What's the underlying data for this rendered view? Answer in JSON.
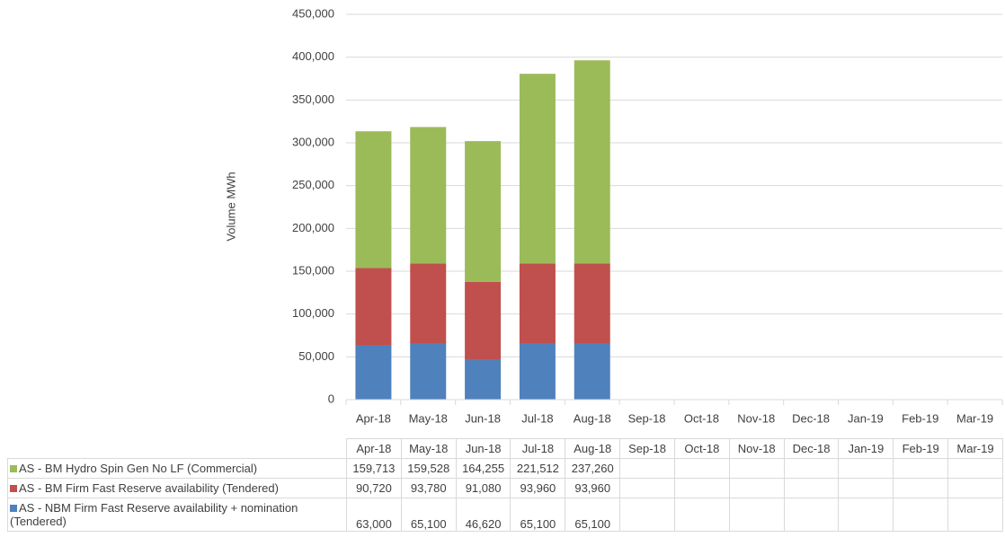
{
  "chart_data": {
    "type": "stacked_bar",
    "y_axis_label": "Volume MWh",
    "categories": [
      "Apr-18",
      "May-18",
      "Jun-18",
      "Jul-18",
      "Aug-18",
      "Sep-18",
      "Oct-18",
      "Nov-18",
      "Dec-18",
      "Jan-19",
      "Feb-19",
      "Mar-19"
    ],
    "series": [
      {
        "name": "AS - NBM Firm Fast Reserve availability + nomination (Tendered)",
        "color": "#4f81bd",
        "values": [
          63000,
          65100,
          46620,
          65100,
          65100,
          null,
          null,
          null,
          null,
          null,
          null,
          null
        ],
        "value_labels": [
          "63,000",
          "65,100",
          "46,620",
          "65,100",
          "65,100",
          null,
          null,
          null,
          null,
          null,
          null,
          null
        ]
      },
      {
        "name": "AS - BM Firm Fast Reserve availability (Tendered)",
        "color": "#c0504d",
        "values": [
          90720,
          93780,
          91080,
          93960,
          93960,
          null,
          null,
          null,
          null,
          null,
          null,
          null
        ],
        "value_labels": [
          "90,720",
          "93,780",
          "91,080",
          "93,960",
          "93,960",
          null,
          null,
          null,
          null,
          null,
          null,
          null
        ]
      },
      {
        "name": "AS - BM Hydro Spin Gen No LF (Commercial)",
        "color": "#9bbb59",
        "values": [
          159713,
          159528,
          164255,
          221512,
          237260,
          null,
          null,
          null,
          null,
          null,
          null,
          null
        ],
        "value_labels": [
          "159,713",
          "159,528",
          "164,255",
          "221,512",
          "237,260",
          null,
          null,
          null,
          null,
          null,
          null,
          null
        ]
      }
    ],
    "ylim": [
      0,
      450000
    ],
    "yticks": [
      0,
      {
        "value": 50000,
        "label": "50,000"
      },
      {
        "value": 100000,
        "label": "100,000"
      },
      {
        "value": 150000,
        "label": "150,000"
      },
      {
        "value": 200000,
        "label": "200,000"
      },
      {
        "value": 250000,
        "label": "250,000"
      },
      {
        "value": 300000,
        "label": "300,000"
      },
      {
        "value": 350000,
        "label": "350,000"
      },
      {
        "value": 400000,
        "label": "400,000"
      },
      {
        "value": 450000,
        "label": "450,000"
      }
    ],
    "grid": true
  }
}
